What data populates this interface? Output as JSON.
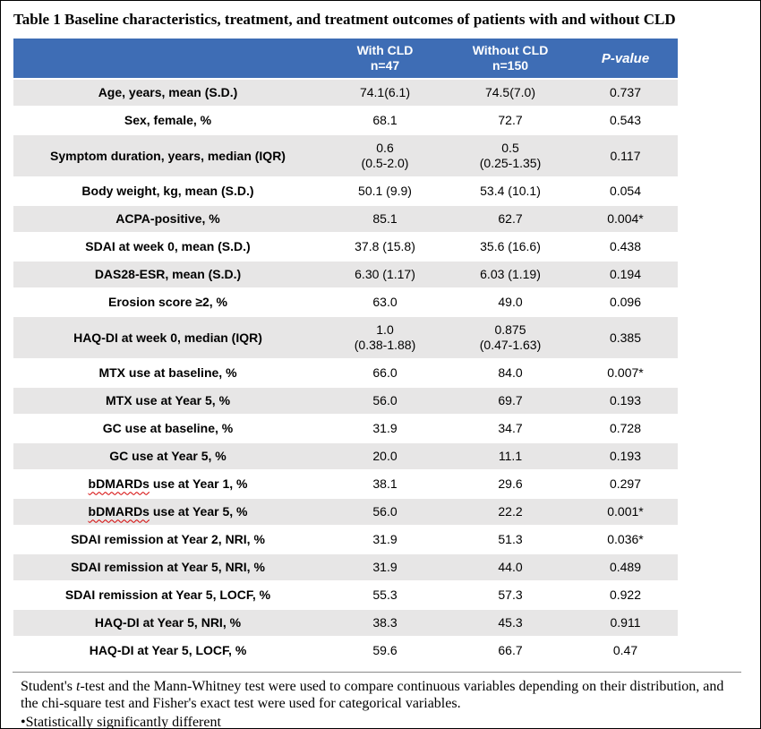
{
  "title": "Table 1 Baseline characteristics, treatment, and treatment outcomes of patients with and without CLD",
  "table": {
    "colors": {
      "header_bg": "#3E6DB5",
      "header_text": "#FFFFFF",
      "row_alt_bg": "#E7E6E6",
      "squiggle_color": "#D40000"
    },
    "header": {
      "empty": "",
      "with_cld": "With CLD",
      "with_cld_n": "n=47",
      "without_cld": "Without CLD",
      "without_cld_n": "n=150",
      "p_value": "P-value"
    },
    "rows": [
      {
        "label": "Age, years, mean (S.D.)",
        "with_cld": "74.1(6.1)",
        "without_cld": "74.5(7.0)",
        "p": "0.737"
      },
      {
        "label": "Sex, female, %",
        "with_cld": "68.1",
        "without_cld": "72.7",
        "p": "0.543"
      },
      {
        "label": "Symptom duration, years, median (IQR)",
        "with_cld": "0.6\n(0.5-2.0)",
        "without_cld": "0.5\n(0.25-1.35)",
        "p": "0.117"
      },
      {
        "label": "Body weight, kg, mean (S.D.)",
        "with_cld": "50.1 (9.9)",
        "without_cld": "53.4 (10.1)",
        "p": "0.054"
      },
      {
        "label": "ACPA-positive, %",
        "with_cld": "85.1",
        "without_cld": "62.7",
        "p": "0.004*"
      },
      {
        "label": "SDAI at week 0, mean (S.D.)",
        "with_cld": "37.8 (15.8)",
        "without_cld": "35.6 (16.6)",
        "p": "0.438"
      },
      {
        "label": "DAS28-ESR, mean (S.D.)",
        "with_cld": "6.30 (1.17)",
        "without_cld": "6.03 (1.19)",
        "p": "0.194"
      },
      {
        "label": "Erosion score ≥2, %",
        "with_cld": "63.0",
        "without_cld": "49.0",
        "p": "0.096"
      },
      {
        "label": "HAQ-DI at week 0, median (IQR)",
        "with_cld": "1.0\n(0.38-1.88)",
        "without_cld": "0.875\n(0.47-1.63)",
        "p": "0.385"
      },
      {
        "label": "MTX use at baseline, %",
        "with_cld": "66.0",
        "without_cld": "84.0",
        "p": "0.007*"
      },
      {
        "label": "MTX use at Year 5, %",
        "with_cld": "56.0",
        "without_cld": "69.7",
        "p": "0.193"
      },
      {
        "label": "GC use at baseline, %",
        "with_cld": "31.9",
        "without_cld": "34.7",
        "p": "0.728"
      },
      {
        "label": "GC use at Year 5, %",
        "with_cld": "20.0",
        "without_cld": "11.1",
        "p": "0.193"
      },
      {
        "label": "bDMARDs use at Year 1, %",
        "squiggle_word": "bDMARDs",
        "with_cld": "38.1",
        "without_cld": "29.6",
        "p": "0.297"
      },
      {
        "label": "bDMARDs use at Year 5, %",
        "squiggle_word": "bDMARDs",
        "with_cld": "56.0",
        "without_cld": "22.2",
        "p": "0.001*"
      },
      {
        "label": "SDAI remission at Year 2, NRI, %",
        "with_cld": "31.9",
        "without_cld": "51.3",
        "p": "0.036*"
      },
      {
        "label": "SDAI remission at Year 5, NRI, %",
        "with_cld": "31.9",
        "without_cld": "44.0",
        "p": "0.489"
      },
      {
        "label": "SDAI remission at Year 5, LOCF, %",
        "with_cld": "55.3",
        "without_cld": "57.3",
        "p": "0.922"
      },
      {
        "label": "HAQ-DI at Year 5, NRI, %",
        "with_cld": "38.3",
        "without_cld": "45.3",
        "p": "0.911"
      },
      {
        "label": "HAQ-DI at Year 5, LOCF, %",
        "with_cld": "59.6",
        "without_cld": "66.7",
        "p": "0.47"
      }
    ]
  },
  "footnotes": {
    "line1_segments": [
      {
        "text": "Student's "
      },
      {
        "text": "t",
        "italic": true
      },
      {
        "text": "-test and the Mann-Whitney test were used to compare continuous variables depending on their distribution, and the chi-square test and Fisher's exact test were used for categorical variables."
      }
    ],
    "line2": "•Statistically significantly different"
  }
}
